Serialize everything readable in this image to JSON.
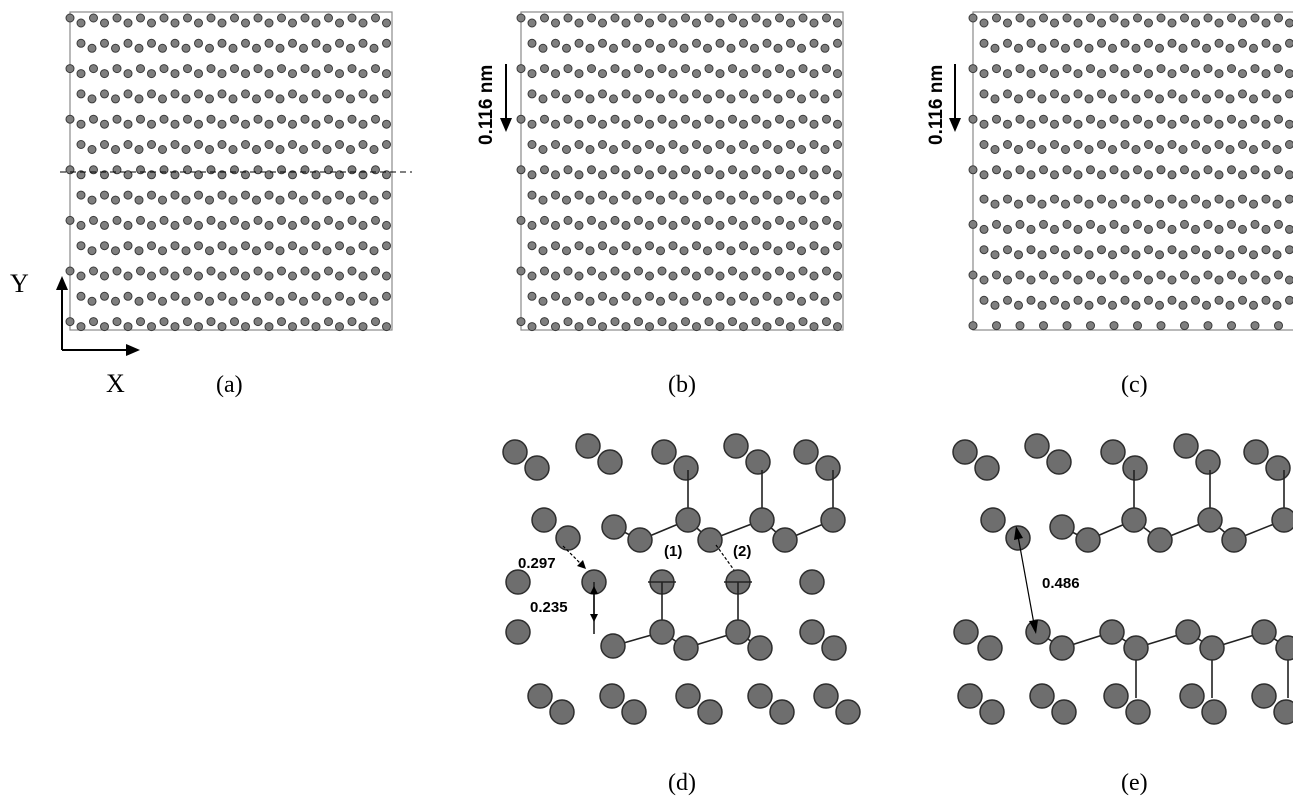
{
  "colors": {
    "atom": "#7f7f7f",
    "frame": "#8a8a8a",
    "bond": "#222222"
  },
  "axes": {
    "y_label": "Y",
    "x_label": "X"
  },
  "panels": {
    "a": {
      "caption": "(a)"
    },
    "b": {
      "caption": "(b)",
      "shift_label": "0.116 nm"
    },
    "c": {
      "caption": "(c)",
      "shift_label": "0.116 nm"
    },
    "d": {
      "caption": "(d)",
      "dist_1": "0.297",
      "dist_2": "0.235",
      "marker_1": "(1)",
      "marker_2": "(2)"
    },
    "e": {
      "caption": "(e)",
      "dist_1": "0.486"
    }
  }
}
